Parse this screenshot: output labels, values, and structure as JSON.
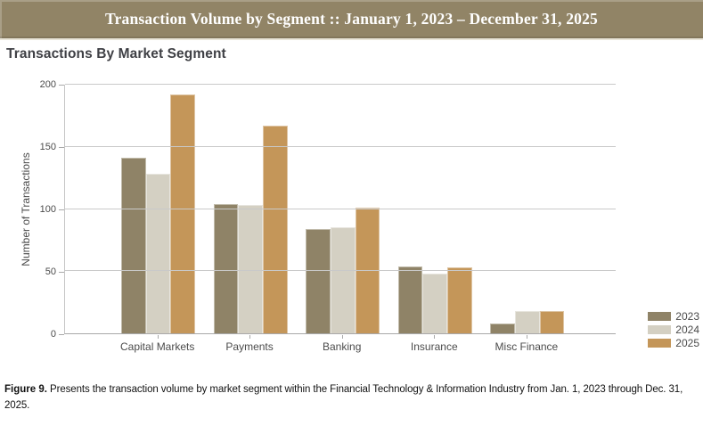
{
  "banner": {
    "title": "Transaction Volume by Segment :: January 1, 2023 – December 31, 2025",
    "bg": "#918466",
    "text_color": "#ffffff"
  },
  "chart_data": {
    "type": "bar",
    "title": "Transactions By Market Segment",
    "xlabel": "",
    "ylabel": "Number of Transactions",
    "ylim": [
      0,
      200
    ],
    "yticks": [
      0,
      50,
      100,
      150,
      200
    ],
    "grid": true,
    "legend_position": "bottom-right",
    "categories": [
      "Capital Markets",
      "Payments",
      "Banking",
      "Insurance",
      "Misc Finance"
    ],
    "series": [
      {
        "name": "2023",
        "color": "#8f8367",
        "values": [
          141,
          104,
          84,
          54,
          8
        ]
      },
      {
        "name": "2024",
        "color": "#d4d0c3",
        "values": [
          128,
          103,
          85,
          48,
          18
        ]
      },
      {
        "name": "2025",
        "color": "#c49659",
        "values": [
          192,
          167,
          101,
          53,
          18
        ]
      }
    ]
  },
  "colors": {
    "gridline": "#c9c9c9",
    "axis": "#a9a9a9",
    "title_text": "#3f4045",
    "label_text": "#4b4b4b"
  },
  "caption": {
    "label": "Figure 9.",
    "text": "Presents the transaction volume by market segment within the Financial Technology & Information Industry from Jan. 1, 2023 through Dec. 31, 2025."
  }
}
